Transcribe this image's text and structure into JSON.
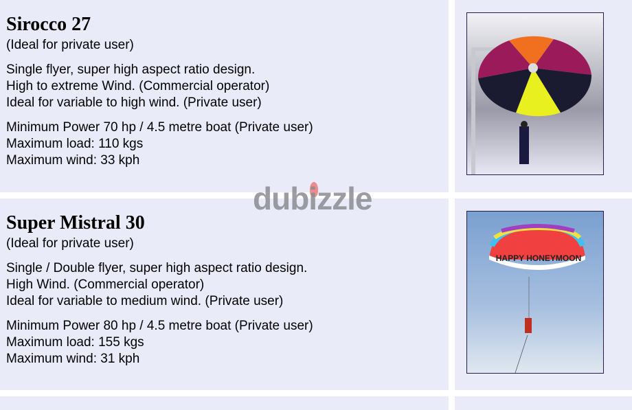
{
  "products": [
    {
      "name": "Sirocco 27",
      "subtitle": "(Ideal for private user)",
      "description": [
        "Single flyer, super high aspect ratio design.",
        "High to extreme Wind. (Commercial operator)",
        "Ideal for variable to high wind. (Private user)"
      ],
      "specs": [
        "Minimum Power 70 hp / 4.5 metre boat (Private user)",
        "Maximum load: 110 kgs",
        "Maximum wind: 33 kph"
      ]
    },
    {
      "name": "Super Mistral 30",
      "subtitle": "(Ideal for private user)",
      "description": [
        "Single / Double flyer, super high aspect ratio design.",
        "High Wind. (Commercial operator)",
        "Ideal for variable to medium wind. (Private user)"
      ],
      "specs": [
        "Minimum Power 80 hp / 4.5 metre boat (Private user)",
        "Maximum load: 155 kgs",
        "Maximum wind: 31 kph"
      ]
    }
  ],
  "photo2_canopy_text": "HAPPY HONEYMOON",
  "watermark": "dubizzle"
}
